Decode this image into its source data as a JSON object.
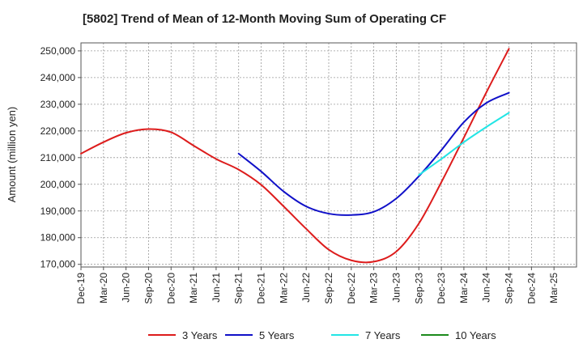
{
  "chart_data": {
    "type": "line",
    "title": "[5802]  Trend of Mean of 12-Month Moving Sum of Operating CF",
    "xlabel": "",
    "ylabel": "Amount (million yen)",
    "ylim": [
      169000,
      253000
    ],
    "yticks": [
      170000,
      180000,
      190000,
      200000,
      210000,
      220000,
      230000,
      240000,
      250000
    ],
    "ytick_labels": [
      "170,000",
      "180,000",
      "190,000",
      "200,000",
      "210,000",
      "220,000",
      "230,000",
      "240,000",
      "250,000"
    ],
    "x_tick_labels": [
      "Dec-19",
      "Mar-20",
      "Jun-20",
      "Sep-20",
      "Dec-20",
      "Mar-21",
      "Jun-21",
      "Sep-21",
      "Dec-21",
      "Mar-22",
      "Jun-22",
      "Sep-22",
      "Dec-22",
      "Mar-23",
      "Jun-23",
      "Sep-23",
      "Dec-23",
      "Mar-24",
      "Jun-24",
      "Sep-24",
      "Dec-24",
      "Mar-25"
    ],
    "grid": true,
    "legend_position": "bottom",
    "series": [
      {
        "name": "3 Years",
        "color": "#dd1c1c",
        "x": [
          0,
          1,
          2,
          3,
          4,
          5,
          6,
          7,
          8,
          9,
          10,
          11,
          12,
          13,
          14,
          15,
          16,
          17,
          18,
          19
        ],
        "values": [
          211500,
          215800,
          219300,
          220700,
          219500,
          214500,
          209500,
          205500,
          199800,
          191700,
          183300,
          175500,
          171500,
          171000,
          174800,
          185300,
          200800,
          217500,
          234500,
          250800
        ]
      },
      {
        "name": "5 Years",
        "color": "#1010c8",
        "x": [
          7,
          8,
          9,
          10,
          11,
          12,
          13,
          14,
          15,
          16,
          17,
          18,
          19
        ],
        "values": [
          211500,
          204800,
          197300,
          191700,
          189000,
          188500,
          189700,
          194700,
          203000,
          212800,
          223300,
          230500,
          234300
        ]
      },
      {
        "name": "7 Years",
        "color": "#22e5e5",
        "x": [
          15,
          16,
          17,
          18,
          19
        ],
        "values": [
          203500,
          209500,
          215800,
          221500,
          226800
        ]
      },
      {
        "name": "10 Years",
        "color": "#1c8a1c",
        "x": [],
        "values": []
      }
    ]
  }
}
